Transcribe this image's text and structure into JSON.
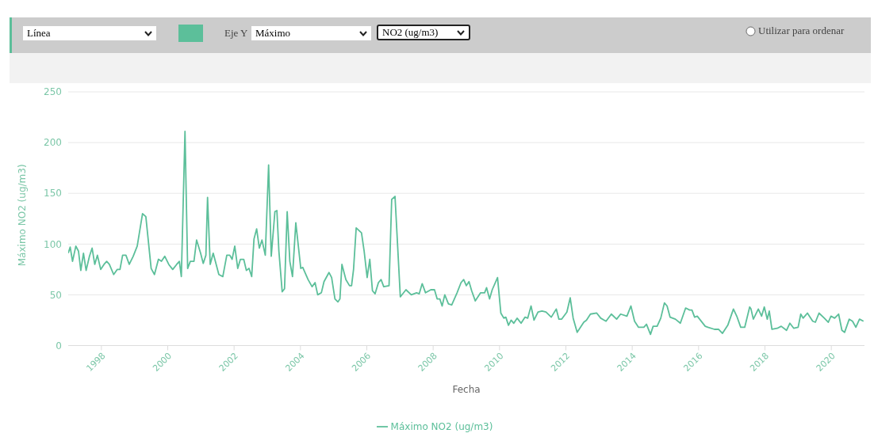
{
  "chart_data": {
    "type": "line",
    "xlabel": "Fecha",
    "ylabel": "Máximo NO2 (ug/m3)",
    "annotations": [
      "Línea",
      "Eje Y",
      "Máximo",
      "NO2 (ug/m3)",
      "Utilizar para ordenar"
    ],
    "xlim": [
      1997,
      2021
    ],
    "xticks": [
      1998,
      2000,
      2002,
      2004,
      2006,
      2008,
      2010,
      2012,
      2014,
      2016,
      2018,
      2020
    ],
    "ylim": [
      0,
      250
    ],
    "yticks": [
      0,
      50,
      100,
      150,
      200,
      250
    ],
    "grid": "y",
    "legend": "bottom",
    "marker": "none",
    "line_style": "solid",
    "series": [
      {
        "name": "Máximo NO2 (ug/m3)",
        "color": "#5cbf9a",
        "x": [
          1997.0,
          1997.06,
          1997.13,
          1997.23,
          1997.31,
          1997.38,
          1997.46,
          1997.54,
          1997.64,
          1997.72,
          1997.8,
          1997.88,
          1997.98,
          1998.08,
          1998.16,
          1998.24,
          1998.37,
          1998.48,
          1998.56,
          1998.64,
          1998.74,
          1998.84,
          1998.96,
          1999.08,
          1999.24,
          1999.34,
          1999.5,
          1999.6,
          1999.72,
          1999.81,
          1999.91,
          2000.03,
          2000.15,
          2000.27,
          2000.35,
          2000.41,
          2000.52,
          2000.6,
          2000.68,
          2000.79,
          2000.87,
          2000.99,
          2001.07,
          2001.15,
          2001.2,
          2001.28,
          2001.37,
          2001.46,
          2001.54,
          2001.66,
          2001.78,
          2001.87,
          2001.94,
          2002.02,
          2002.11,
          2002.19,
          2002.29,
          2002.37,
          2002.45,
          2002.53,
          2002.6,
          2002.68,
          2002.76,
          2002.84,
          2002.94,
          2003.04,
          2003.12,
          2003.23,
          2003.29,
          2003.35,
          2003.45,
          2003.52,
          2003.6,
          2003.68,
          2003.76,
          2003.86,
          2004.01,
          2004.07,
          2004.23,
          2004.35,
          2004.44,
          2004.52,
          2004.63,
          2004.71,
          2004.86,
          2004.94,
          2005.04,
          2005.13,
          2005.19,
          2005.25,
          2005.37,
          2005.48,
          2005.54,
          2005.6,
          2005.68,
          2005.84,
          2005.92,
          2006.01,
          2006.09,
          2006.17,
          2006.25,
          2006.35,
          2006.43,
          2006.51,
          2006.67,
          2006.75,
          2006.85,
          2007.01,
          2007.18,
          2007.34,
          2007.5,
          2007.58,
          2007.67,
          2007.77,
          2007.93,
          2008.04,
          2008.12,
          2008.2,
          2008.27,
          2008.35,
          2008.46,
          2008.56,
          2008.72,
          2008.84,
          2008.92,
          2009.0,
          2009.08,
          2009.16,
          2009.27,
          2009.43,
          2009.55,
          2009.61,
          2009.7,
          2009.78,
          2009.94,
          2010.04,
          2010.13,
          2010.19,
          2010.27,
          2010.35,
          2010.43,
          2010.53,
          2010.65,
          2010.77,
          2010.85,
          2010.95,
          2011.04,
          2011.16,
          2011.28,
          2011.4,
          2011.56,
          2011.71,
          2011.79,
          2011.87,
          2012.03,
          2012.13,
          2012.22,
          2012.34,
          2012.54,
          2012.62,
          2012.74,
          2012.93,
          2013.05,
          2013.21,
          2013.37,
          2013.53,
          2013.65,
          2013.84,
          2013.96,
          2014.07,
          2014.19,
          2014.35,
          2014.43,
          2014.55,
          2014.63,
          2014.75,
          2014.86,
          2014.97,
          2015.05,
          2015.14,
          2015.3,
          2015.45,
          2015.61,
          2015.73,
          2015.8,
          2015.88,
          2015.96,
          2016.2,
          2016.28,
          2016.48,
          2016.6,
          2016.72,
          2016.88,
          2017.05,
          2017.15,
          2017.27,
          2017.39,
          2017.54,
          2017.58,
          2017.65,
          2017.8,
          2017.9,
          2017.98,
          2018.07,
          2018.13,
          2018.21,
          2018.37,
          2018.49,
          2018.65,
          2018.75,
          2018.87,
          2019.0,
          2019.08,
          2019.15,
          2019.28,
          2019.44,
          2019.52,
          2019.63,
          2019.79,
          2019.91,
          2019.99,
          2020.1,
          2020.22,
          2020.32,
          2020.4,
          2020.54,
          2020.64,
          2020.74,
          2020.85,
          2020.97
        ],
        "values": [
          91,
          97,
          83,
          98,
          93,
          74,
          91,
          74,
          88,
          96,
          80,
          89,
          75,
          80,
          83,
          80,
          70,
          75,
          75,
          89,
          89,
          80,
          88,
          98,
          130,
          127,
          76,
          70,
          85,
          83,
          88,
          80,
          75,
          80,
          83,
          68,
          211,
          76,
          83,
          83,
          104,
          91,
          81,
          89,
          146,
          80,
          91,
          80,
          70,
          68,
          89,
          89,
          85,
          98,
          76,
          85,
          85,
          74,
          76,
          68,
          105,
          115,
          96,
          104,
          89,
          178,
          88,
          132,
          133,
          93,
          53,
          56,
          132,
          83,
          68,
          121,
          76,
          77,
          65,
          58,
          62,
          50,
          52,
          63,
          72,
          67,
          46,
          43,
          46,
          80,
          65,
          59,
          59,
          75,
          116,
          111,
          93,
          67,
          85,
          54,
          51,
          62,
          65,
          58,
          59,
          144,
          147,
          48,
          55,
          50,
          52,
          51,
          61,
          52,
          55,
          55,
          46,
          46,
          39,
          50,
          41,
          40,
          52,
          62,
          65,
          59,
          63,
          54,
          44,
          52,
          52,
          57,
          46,
          55,
          67,
          32,
          27,
          28,
          20,
          25,
          22,
          27,
          22,
          28,
          27,
          39,
          25,
          33,
          34,
          33,
          28,
          36,
          26,
          26,
          33,
          47,
          27,
          13,
          23,
          25,
          31,
          32,
          27,
          24,
          31,
          26,
          31,
          29,
          39,
          24,
          18,
          18,
          21,
          11,
          19,
          19,
          27,
          42,
          39,
          28,
          26,
          22,
          37,
          35,
          35,
          28,
          29,
          19,
          18,
          16,
          16,
          12,
          20,
          36,
          29,
          18,
          18,
          38,
          36,
          26,
          36,
          29,
          38,
          26,
          34,
          16,
          17,
          19,
          15,
          22,
          17,
          18,
          31,
          27,
          32,
          24,
          23,
          32,
          27,
          23,
          29,
          27,
          31,
          15,
          13,
          26,
          24,
          18,
          26,
          24
        ]
      }
    ]
  }
}
